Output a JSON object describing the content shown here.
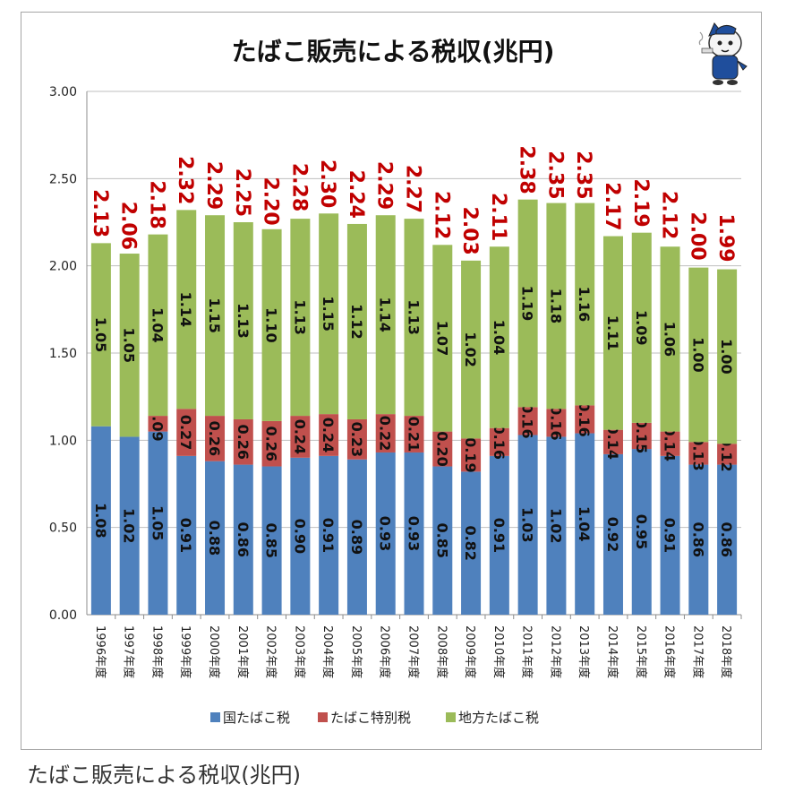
{
  "caption": "たばこ販売による税収(兆円)",
  "chart_data": {
    "type": "bar",
    "stacked": true,
    "title": "たばこ販売による税収(兆円)",
    "ylim": [
      0,
      3
    ],
    "yticks": [
      "0.00",
      "0.50",
      "1.00",
      "1.50",
      "2.00",
      "2.50",
      "3.00"
    ],
    "categories": [
      "1996年度",
      "1997年度",
      "1998年度",
      "1999年度",
      "2000年度",
      "2001年度",
      "2002年度",
      "2003年度",
      "2004年度",
      "2005年度",
      "2006年度",
      "2007年度",
      "2008年度",
      "2009年度",
      "2010年度",
      "2011年度",
      "2012年度",
      "2013年度",
      "2014年度",
      "2015年度",
      "2016年度",
      "2017年度",
      "2018年度"
    ],
    "series": [
      {
        "name": "国たばこ税",
        "color": "#4f81bd",
        "values": [
          1.08,
          1.02,
          1.05,
          0.91,
          0.88,
          0.86,
          0.85,
          0.9,
          0.91,
          0.89,
          0.93,
          0.93,
          0.85,
          0.82,
          0.91,
          1.03,
          1.02,
          1.04,
          0.92,
          0.95,
          0.91,
          0.86,
          0.86
        ],
        "labels": [
          "1.08",
          "1.02",
          "1.05",
          "0.91",
          "0.88",
          "0.86",
          "0.85",
          "0.90",
          "0.91",
          "0.89",
          "0.93",
          "0.93",
          "0.85",
          "0.82",
          "0.91",
          "1.03",
          "1.02",
          "1.04",
          "0.92",
          "0.95",
          "0.91",
          "0.86",
          "0.86"
        ]
      },
      {
        "name": "たばこ特別税",
        "color": "#c0504d",
        "values": [
          0,
          0,
          0.09,
          0.27,
          0.26,
          0.26,
          0.26,
          0.24,
          0.24,
          0.23,
          0.22,
          0.21,
          0.2,
          0.19,
          0.16,
          0.16,
          0.16,
          0.16,
          0.14,
          0.15,
          0.14,
          0.13,
          0.12
        ],
        "labels": [
          "",
          "",
          "0.09",
          "0.27",
          "0.26",
          "0.26",
          "0.26",
          "0.24",
          "0.24",
          "0.23",
          "0.22",
          "0.21",
          "0.20",
          "0.19",
          "0.16",
          "0.16",
          "0.16",
          "0.16",
          "0.14",
          "0.15",
          "0.14",
          "0.13",
          "0.12"
        ]
      },
      {
        "name": "地方たばこ税",
        "color": "#9bbb59",
        "values": [
          1.05,
          1.05,
          1.04,
          1.14,
          1.15,
          1.13,
          1.1,
          1.13,
          1.15,
          1.12,
          1.14,
          1.13,
          1.07,
          1.02,
          1.04,
          1.19,
          1.18,
          1.16,
          1.11,
          1.09,
          1.06,
          1.0,
          1.0
        ],
        "labels": [
          "1.05",
          "1.05",
          "1.04",
          "1.14",
          "1.15",
          "1.13",
          "1.10",
          "1.13",
          "1.15",
          "1.12",
          "1.14",
          "1.13",
          "1.07",
          "1.02",
          "1.04",
          "1.19",
          "1.18",
          "1.16",
          "1.11",
          "1.09",
          "1.06",
          "1.00",
          "1.00"
        ]
      }
    ],
    "totals": [
      2.13,
      2.06,
      2.18,
      2.32,
      2.29,
      2.25,
      2.2,
      2.28,
      2.3,
      2.24,
      2.29,
      2.27,
      2.12,
      2.03,
      2.11,
      2.38,
      2.35,
      2.35,
      2.17,
      2.19,
      2.12,
      2.0,
      1.99
    ],
    "total_labels": [
      "2.13",
      "2.06",
      "2.18",
      "2.32",
      "2.29",
      "2.25",
      "2.20",
      "2.28",
      "2.30",
      "2.24",
      "2.29",
      "2.27",
      "2.12",
      "2.03",
      "2.11",
      "2.38",
      "2.35",
      "2.35",
      "2.17",
      "2.19",
      "2.12",
      "2.00",
      "1.99"
    ],
    "total_color": "#c00000",
    "gridlines": true,
    "legend_position": "bottom"
  }
}
